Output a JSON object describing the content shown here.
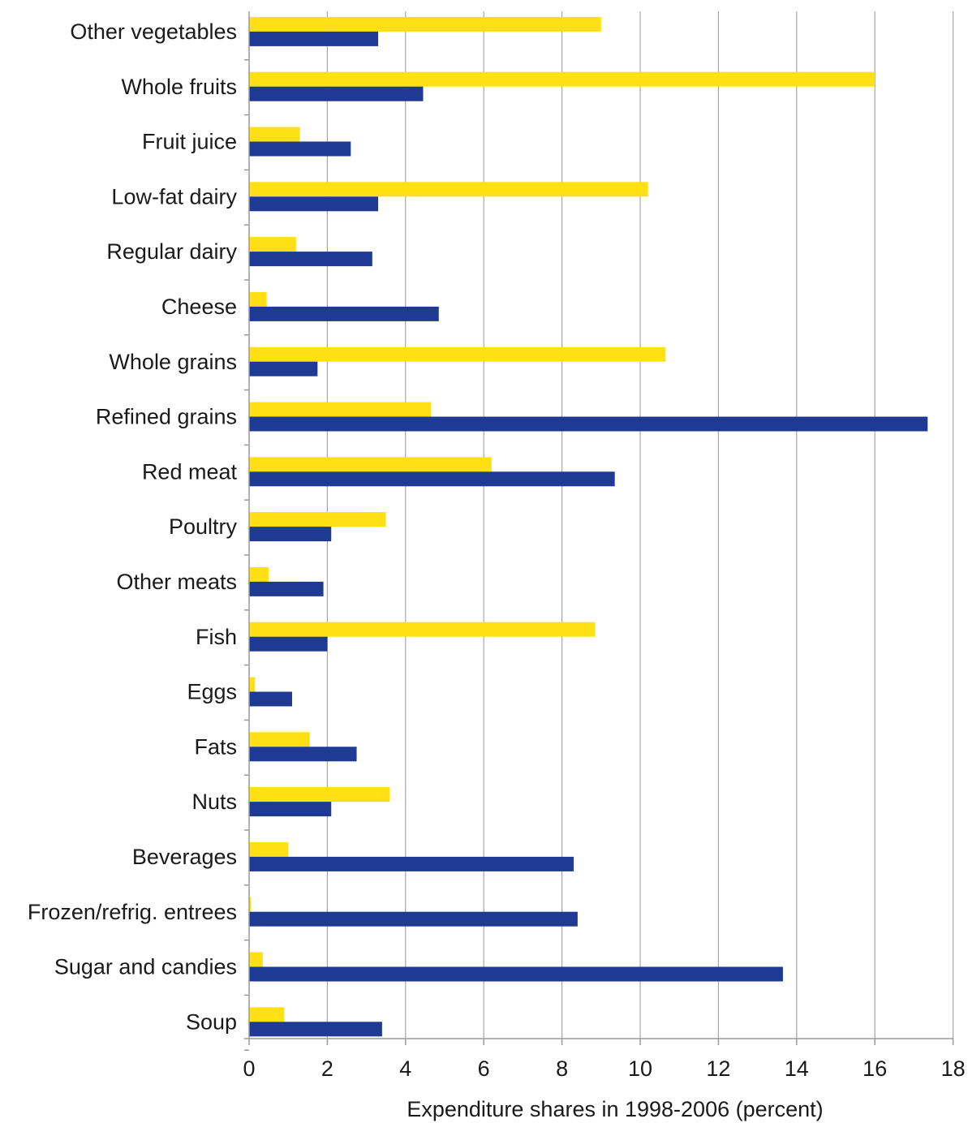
{
  "chart_data": {
    "type": "bar",
    "orientation": "horizontal",
    "categories": [
      "Other vegetables",
      "Whole fruits",
      "Fruit juice",
      "Low-fat dairy",
      "Regular dairy",
      "Cheese",
      "Whole grains",
      "Refined grains",
      "Red meat",
      "Poultry",
      "Other meats",
      "Fish",
      "Eggs",
      "Fats",
      "Nuts",
      "Beverages",
      "Frozen/refrig. entrees",
      "Sugar and candies",
      "Soup"
    ],
    "series": [
      {
        "color": "#FFE014",
        "values": [
          9.0,
          16.0,
          1.3,
          10.2,
          1.2,
          0.45,
          10.65,
          4.65,
          6.2,
          3.5,
          0.5,
          8.85,
          0.15,
          1.55,
          3.6,
          1.0,
          0.05,
          0.35,
          0.9
        ]
      },
      {
        "color": "#1F3A93",
        "values": [
          3.3,
          4.45,
          2.6,
          3.3,
          3.15,
          4.85,
          1.75,
          17.35,
          9.35,
          2.1,
          1.9,
          2.0,
          1.1,
          2.75,
          2.1,
          8.3,
          8.4,
          13.65,
          3.4
        ]
      }
    ],
    "xticks": [
      "0",
      "2",
      "4",
      "6",
      "8",
      "10",
      "12",
      "14",
      "16",
      "18"
    ],
    "xlabel": "Expenditure shares in 1998-2006 (percent)",
    "xlim": [
      0,
      18
    ],
    "grid": true,
    "grid_color": "#a6a6a6",
    "axis_color": "#9a9a9a"
  }
}
